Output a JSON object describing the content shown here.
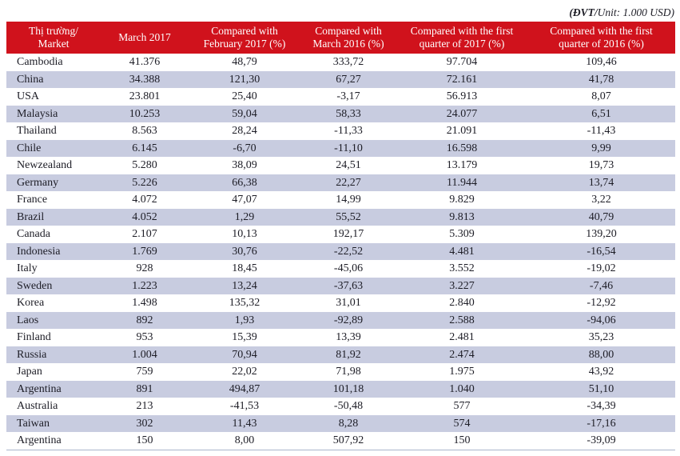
{
  "unit_note": {
    "prefix": "(ĐVT/",
    "text": "Unit: 1.000 USD)"
  },
  "header": {
    "cells": [
      {
        "line1": "Thị trường/",
        "line2": "Market"
      },
      {
        "line1": "March 2017",
        "line2": ""
      },
      {
        "line1": "Compared with",
        "line2": "February 2017 (%)"
      },
      {
        "line1": "Compared with",
        "line2": "March 2016 (%)"
      },
      {
        "line1": "Compared with the first",
        "line2": "quarter of 2017 (%)"
      },
      {
        "line1": "Compared with the first",
        "line2": "quarter of 2016 (%)"
      }
    ]
  },
  "chart_data": {
    "type": "table",
    "title": "Seafood export markets",
    "unit": "1.000 USD",
    "columns": [
      "Thị trường/Market",
      "March 2017",
      "Compared with February 2017 (%)",
      "Compared with March 2016 (%)",
      "Compared with the first quarter of 2017 (%)",
      "Compared with the first quarter of 2016 (%)"
    ],
    "rows": [
      [
        "Cambodia",
        "41.376",
        "48,79",
        "333,72",
        "97.704",
        "109,46"
      ],
      [
        "China",
        "34.388",
        "121,30",
        "67,27",
        "72.161",
        "41,78"
      ],
      [
        "USA",
        "23.801",
        "25,40",
        "-3,17",
        "56.913",
        "8,07"
      ],
      [
        "Malaysia",
        "10.253",
        "59,04",
        "58,33",
        "24.077",
        "6,51"
      ],
      [
        "Thailand",
        "8.563",
        "28,24",
        "-11,33",
        "21.091",
        "-11,43"
      ],
      [
        "Chile",
        "6.145",
        "-6,70",
        "-11,10",
        "16.598",
        "9,99"
      ],
      [
        "Newzealand",
        "5.280",
        "38,09",
        "24,51",
        "13.179",
        "19,73"
      ],
      [
        "Germany",
        "5.226",
        "66,38",
        "22,27",
        "11.944",
        "13,74"
      ],
      [
        "France",
        "4.072",
        "47,07",
        "14,99",
        "9.829",
        "3,22"
      ],
      [
        "Brazil",
        "4.052",
        "1,29",
        "55,52",
        "9.813",
        "40,79"
      ],
      [
        "Canada",
        "2.107",
        "10,13",
        "192,17",
        "5.309",
        "139,20"
      ],
      [
        "Indonesia",
        "1.769",
        "30,76",
        "-22,52",
        "4.481",
        "-16,54"
      ],
      [
        "Italy",
        "928",
        "18,45",
        "-45,06",
        "3.552",
        "-19,02"
      ],
      [
        "Sweden",
        "1.223",
        "13,24",
        "-37,63",
        "3.227",
        "-7,46"
      ],
      [
        "Korea",
        "1.498",
        "135,32",
        "31,01",
        "2.840",
        "-12,92"
      ],
      [
        "Laos",
        "892",
        "1,93",
        "-92,89",
        "2.588",
        "-94,06"
      ],
      [
        "Finland",
        "953",
        "15,39",
        "13,39",
        "2.481",
        "35,23"
      ],
      [
        "Russia",
        "1.004",
        "70,94",
        "81,92",
        "2.474",
        "88,00"
      ],
      [
        "Japan",
        "759",
        "22,02",
        "71,98",
        "1.975",
        "43,92"
      ],
      [
        "Argentina",
        "891",
        "494,87",
        "101,18",
        "1.040",
        "51,10"
      ],
      [
        "Australia",
        "213",
        "-41,53",
        "-50,48",
        "577",
        "-34,39"
      ],
      [
        "Taiwan",
        "302",
        "11,43",
        "8,28",
        "574",
        "-17,16"
      ],
      [
        "Argentina",
        "150",
        "8,00",
        "507,92",
        "150",
        "-39,09"
      ]
    ],
    "layout": {
      "header_rows": 1,
      "striped_rows": true,
      "first_striped_row_index": 1
    }
  },
  "colors": {
    "header_bg": "#d0121c",
    "stripe": "#c8cce0",
    "table_border": "#a9b5cb",
    "text": "#1d1d26",
    "header_text": "#ffffff"
  }
}
